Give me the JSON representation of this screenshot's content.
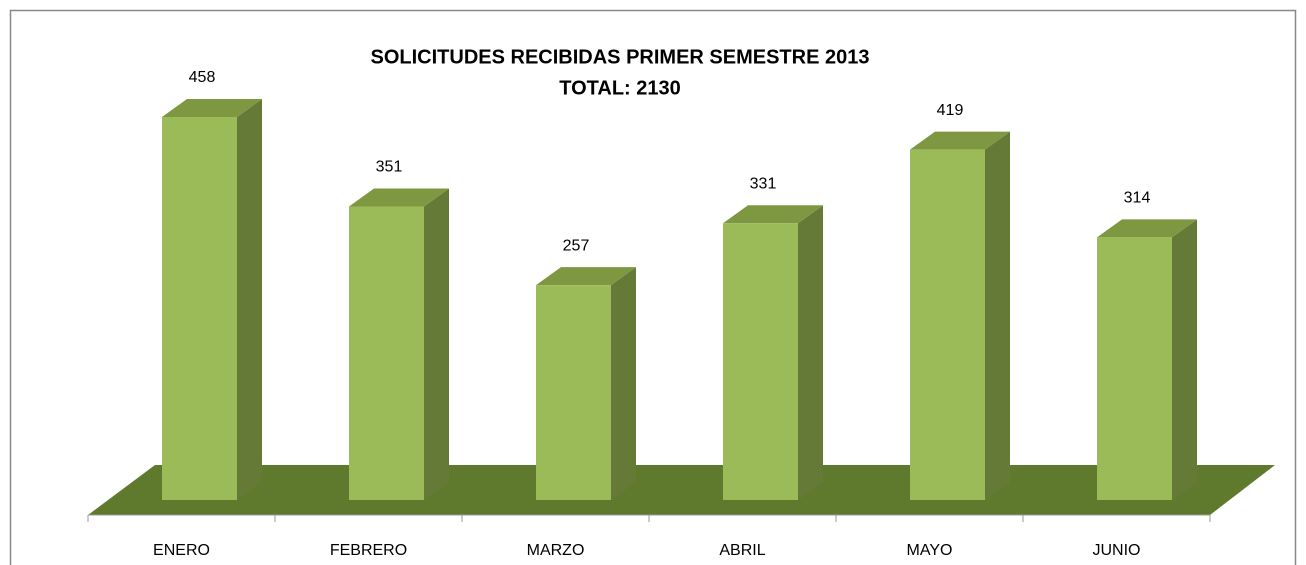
{
  "chart_data": {
    "type": "bar3d",
    "title": "SOLICITUDES RECIBIDAS PRIMER SEMESTRE 2013",
    "subtitle": "TOTAL: 2130",
    "categories": [
      "ENERO",
      "FEBRERO",
      "MARZO",
      "ABRIL",
      "MAYO",
      "JUNIO"
    ],
    "values": [
      458,
      351,
      257,
      331,
      419,
      314
    ],
    "color": "#9bbb59"
  }
}
